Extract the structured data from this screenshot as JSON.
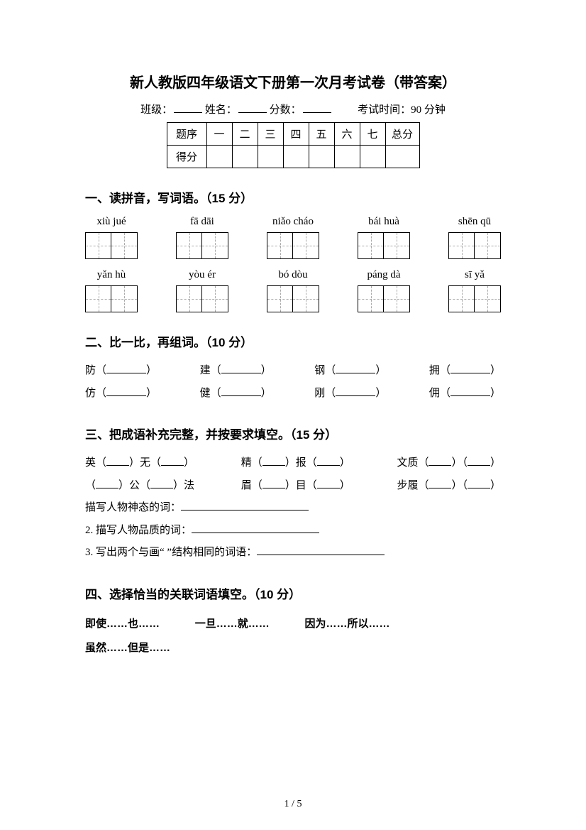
{
  "doc_title": "新人教版四年级语文下册第一次月考试卷（带答案）",
  "info": {
    "class_label": "班级：",
    "name_label": "姓名：",
    "score_label": "分数：",
    "time_label": "考试时间：90 分钟"
  },
  "score_table": {
    "headers": [
      "题序",
      "一",
      "二",
      "三",
      "四",
      "五",
      "六",
      "七",
      "总分"
    ],
    "row2_label": "得分"
  },
  "sections": {
    "s1": {
      "title": "一、读拼音，写词语。（15 分）",
      "row1": [
        "xiù jué",
        "fā dāi",
        "niǎo cháo",
        "bái huà",
        "shēn qū"
      ],
      "row2": [
        "yǎn hù",
        "yòu ér",
        "bó dòu",
        "páng dà",
        "sī yǎ"
      ]
    },
    "s2": {
      "title": "二、比一比，再组词。（10 分）",
      "pairs": [
        [
          "防",
          "仿"
        ],
        [
          "建",
          "健"
        ],
        [
          "钢",
          "刚"
        ],
        [
          "拥",
          "佣"
        ]
      ]
    },
    "s3": {
      "title": "三、把成语补充完整，并按要求填空。（15 分）",
      "row1": [
        {
          "pre": "英（",
          "mid": "）无（",
          "post": "）"
        },
        {
          "pre": "精（",
          "mid": "）报（",
          "post": "）"
        },
        {
          "pre": "文质（",
          "mid": "）（",
          "post": "）"
        }
      ],
      "row2": [
        {
          "pre": "（",
          "mid": "）公（",
          "post": "）法"
        },
        {
          "pre": "眉（",
          "mid": "）目（",
          "post": "）"
        },
        {
          "pre": "步履（",
          "mid": "）（",
          "post": "）"
        }
      ],
      "line1": "描写人物神态的词：",
      "line2": "2. 描写人物品质的词：",
      "line3_pre": "3. 写出两个与画“  ”结构相同的词语："
    },
    "s4": {
      "title": "四、选择恰当的关联词语填空。（10 分）",
      "options": [
        "即使……也……",
        "一旦……就……",
        "因为……所以……",
        "虽然……但是……"
      ]
    }
  },
  "page": {
    "current": "1",
    "total": "5",
    "sep": " / "
  },
  "style": {
    "text_color": "#000000",
    "bg_color": "#ffffff",
    "title_fontsize": 20,
    "section_fontsize": 17,
    "body_fontsize": 15
  }
}
